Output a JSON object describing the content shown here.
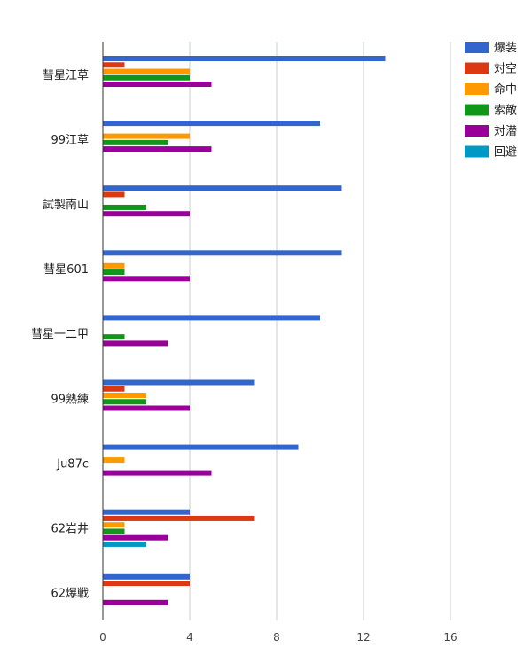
{
  "chart_data": {
    "type": "bar",
    "orientation": "horizontal",
    "categories": [
      "彗星江草",
      "99江草",
      "試製南山",
      "彗星601",
      "彗星一二甲",
      "99熟練",
      "Ju87c",
      "62岩井",
      "62爆戦"
    ],
    "series": [
      {
        "name": "爆装",
        "color": "#3366cc",
        "values": [
          13,
          10,
          11,
          11,
          10,
          7,
          9,
          4,
          4
        ]
      },
      {
        "name": "対空",
        "color": "#dc3912",
        "values": [
          1,
          0,
          1,
          0,
          0,
          1,
          0,
          7,
          4
        ]
      },
      {
        "name": "命中",
        "color": "#ff9900",
        "values": [
          4,
          4,
          0,
          1,
          0,
          2,
          1,
          1,
          0
        ]
      },
      {
        "name": "索敵",
        "color": "#109618",
        "values": [
          4,
          3,
          2,
          1,
          1,
          2,
          0,
          1,
          0
        ]
      },
      {
        "name": "対潜",
        "color": "#990099",
        "values": [
          5,
          5,
          4,
          4,
          3,
          4,
          5,
          3,
          3
        ]
      },
      {
        "name": "回避",
        "color": "#0099c6",
        "values": [
          0,
          0,
          0,
          0,
          0,
          0,
          0,
          2,
          0
        ]
      }
    ],
    "xlim": [
      0,
      16
    ],
    "x_ticks": [
      "0",
      "4",
      "8",
      "12",
      "16"
    ],
    "grid": true,
    "legend_position": "top-right"
  }
}
